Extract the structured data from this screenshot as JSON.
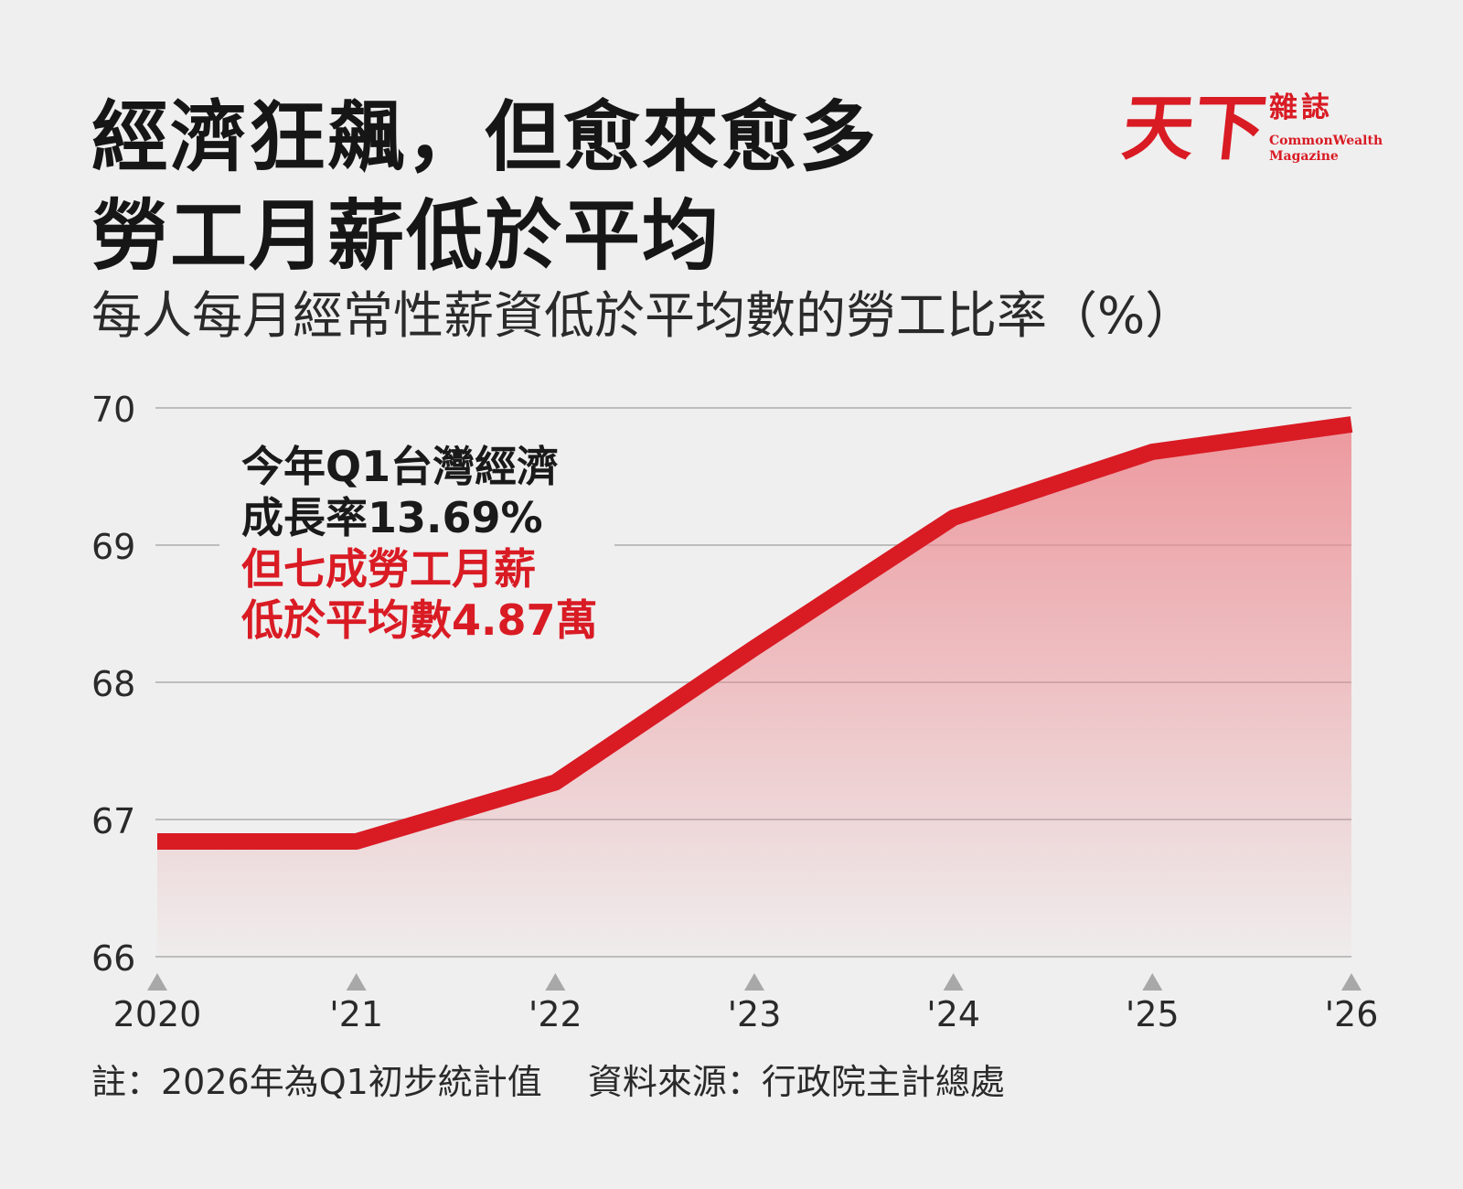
{
  "title": {
    "line1": "經濟狂飆，但愈來愈多",
    "line2": "勞工月薪低於平均"
  },
  "subtitle": "每人每月經常性薪資低於平均數的勞工比率（%）",
  "logo": {
    "main": "天下",
    "small": "雜誌",
    "en_line1": "CommonWealth",
    "en_line2": "Magazine"
  },
  "annotation": {
    "line1": "今年Q1台灣經濟",
    "line2": "成長率13.69%",
    "line3": "但七成勞工月薪",
    "line4": "低於平均數4.87萬"
  },
  "footnote": {
    "note": "註：2026年為Q1初步統計值",
    "source": "資料來源：行政院主計總處"
  },
  "colors": {
    "line": "#d91b24",
    "fill": "#ec8a90",
    "grid": "#bdbdbd",
    "background": "#efefef"
  },
  "chart_data": {
    "type": "area",
    "x": [
      "2020",
      "'21",
      "'22",
      "'23",
      "'24",
      "'25",
      "'26"
    ],
    "values": [
      66.84,
      66.84,
      67.27,
      68.25,
      69.2,
      69.68,
      69.88
    ],
    "y_ticks": [
      66,
      67,
      68,
      69,
      70
    ],
    "ylim": [
      66,
      70
    ],
    "grid": true,
    "legend": "none"
  }
}
